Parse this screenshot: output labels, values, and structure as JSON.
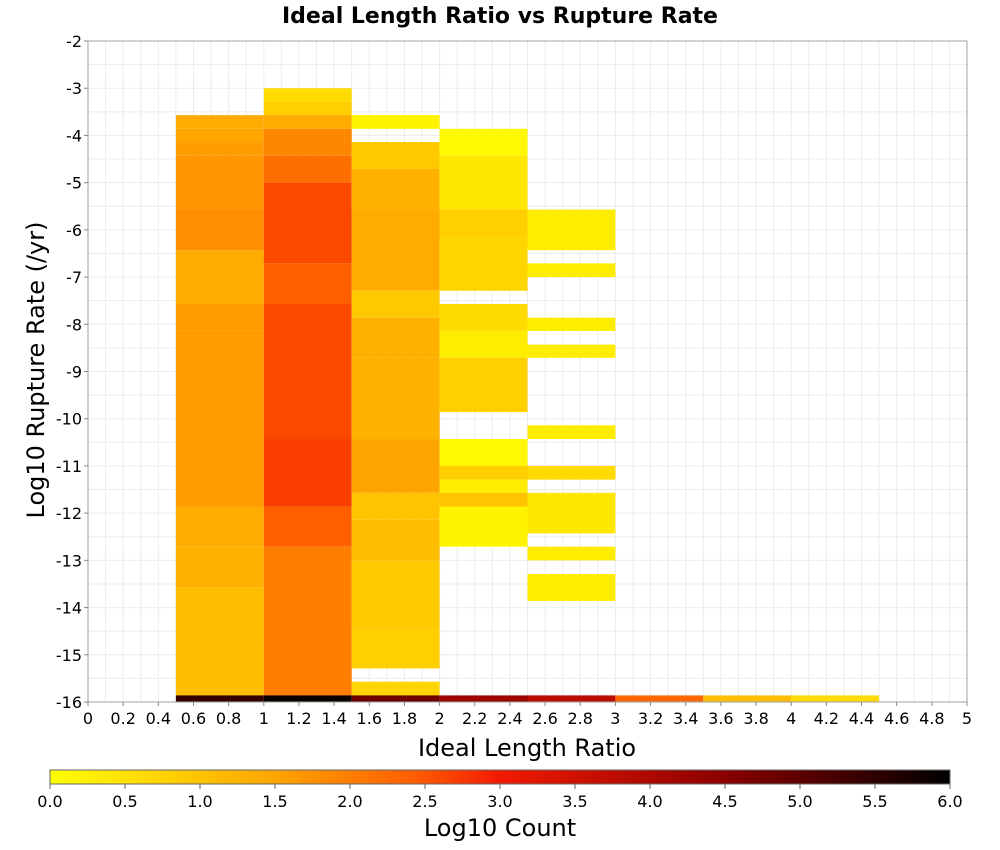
{
  "chart_data": {
    "type": "heatmap",
    "title": "Ideal Length Ratio vs Rupture Rate",
    "xlabel": "Ideal Length Ratio",
    "ylabel": "Log10 Rupture Rate (/yr)",
    "xlim": [
      0,
      5
    ],
    "ylim": [
      -16,
      -2
    ],
    "grid": true,
    "x_ticks": [
      "0",
      "0.2",
      "0.4",
      "0.6",
      "0.8",
      "1",
      "1.2",
      "1.4",
      "1.6",
      "1.8",
      "2",
      "2.2",
      "2.4",
      "2.6",
      "2.8",
      "3",
      "3.2",
      "3.4",
      "3.6",
      "3.8",
      "4",
      "4.2",
      "4.4",
      "4.6",
      "4.8",
      "5"
    ],
    "y_ticks": [
      "-2",
      "-3",
      "-4",
      "-5",
      "-6",
      "-7",
      "-8",
      "-9",
      "-10",
      "-11",
      "-12",
      "-13",
      "-14",
      "-15",
      "-16"
    ],
    "colorbar": {
      "label": "Log10 Count",
      "range": [
        0,
        6
      ],
      "ticks": [
        "0.0",
        "0.5",
        "1.0",
        "1.5",
        "2.0",
        "2.5",
        "3.0",
        "3.5",
        "4.0",
        "4.5",
        "5.0",
        "5.5",
        "6.0"
      ],
      "colors": [
        "#ffff00",
        "#ffa500",
        "#ff5a00",
        "#f21a00",
        "#8a0000",
        "#000000"
      ]
    },
    "bin_height": 0.2857,
    "cells": [
      {
        "x": [
          0.5,
          1.0
        ],
        "segments": [
          {
            "y": [
              -3.86,
              -3.57
            ],
            "v": 1.4
          },
          {
            "y": [
              -4.14,
              -3.86
            ],
            "v": 1.5
          },
          {
            "y": [
              -4.43,
              -4.14
            ],
            "v": 1.6
          },
          {
            "y": [
              -5.57,
              -4.43
            ],
            "v": 1.7
          },
          {
            "y": [
              -6.43,
              -5.57
            ],
            "v": 1.8
          },
          {
            "y": [
              -7.57,
              -6.43
            ],
            "v": 1.4
          },
          {
            "y": [
              -8.14,
              -7.57
            ],
            "v": 1.6
          },
          {
            "y": [
              -10.43,
              -8.14
            ],
            "v": 1.6
          },
          {
            "y": [
              -11.86,
              -10.43
            ],
            "v": 1.6
          },
          {
            "y": [
              -12.71,
              -11.86
            ],
            "v": 1.4
          },
          {
            "y": [
              -13.57,
              -12.71
            ],
            "v": 1.3
          },
          {
            "y": [
              -14.71,
              -13.57
            ],
            "v": 1.1
          },
          {
            "y": [
              -15.86,
              -14.71
            ],
            "v": 1.1
          },
          {
            "y": [
              -16.14,
              -15.86
            ],
            "v": 5.4
          }
        ]
      },
      {
        "x": [
          1.0,
          1.5
        ],
        "segments": [
          {
            "y": [
              -3.29,
              -3.0
            ],
            "v": 0.6
          },
          {
            "y": [
              -3.57,
              -3.29
            ],
            "v": 0.8
          },
          {
            "y": [
              -3.86,
              -3.57
            ],
            "v": 1.4
          },
          {
            "y": [
              -4.43,
              -3.86
            ],
            "v": 1.9
          },
          {
            "y": [
              -5.0,
              -4.43
            ],
            "v": 2.2
          },
          {
            "y": [
              -6.71,
              -5.0
            ],
            "v": 2.6
          },
          {
            "y": [
              -7.57,
              -6.71
            ],
            "v": 2.4
          },
          {
            "y": [
              -10.43,
              -7.57
            ],
            "v": 2.6
          },
          {
            "y": [
              -11.86,
              -10.43
            ],
            "v": 2.7
          },
          {
            "y": [
              -12.71,
              -11.86
            ],
            "v": 2.4
          },
          {
            "y": [
              -15.86,
              -12.71
            ],
            "v": 2.0
          },
          {
            "y": [
              -16.14,
              -15.86
            ],
            "v": 5.9
          }
        ]
      },
      {
        "x": [
          1.5,
          2.0
        ],
        "segments": [
          {
            "y": [
              -3.86,
              -3.57
            ],
            "v": 0.2
          },
          {
            "y": [
              -4.71,
              -4.14
            ],
            "v": 0.9
          },
          {
            "y": [
              -5.57,
              -4.71
            ],
            "v": 1.3
          },
          {
            "y": [
              -7.29,
              -5.57
            ],
            "v": 1.4
          },
          {
            "y": [
              -7.86,
              -7.29
            ],
            "v": 0.9
          },
          {
            "y": [
              -8.71,
              -7.86
            ],
            "v": 1.3
          },
          {
            "y": [
              -10.43,
              -8.71
            ],
            "v": 1.3
          },
          {
            "y": [
              -11.57,
              -10.43
            ],
            "v": 1.5
          },
          {
            "y": [
              -12.14,
              -11.57
            ],
            "v": 1.0
          },
          {
            "y": [
              -13.0,
              -12.14
            ],
            "v": 1.1
          },
          {
            "y": [
              -14.43,
              -13.0
            ],
            "v": 0.9
          },
          {
            "y": [
              -15.29,
              -14.43
            ],
            "v": 0.8
          },
          {
            "y": [
              -15.86,
              -15.57
            ],
            "v": 0.7
          },
          {
            "y": [
              -16.14,
              -15.86
            ],
            "v": 4.8
          }
        ]
      },
      {
        "x": [
          2.0,
          2.5
        ],
        "segments": [
          {
            "y": [
              -4.43,
              -3.86
            ],
            "v": 0.1
          },
          {
            "y": [
              -5.57,
              -4.43
            ],
            "v": 0.4
          },
          {
            "y": [
              -6.14,
              -5.57
            ],
            "v": 0.8
          },
          {
            "y": [
              -7.29,
              -6.14
            ],
            "v": 0.7
          },
          {
            "y": [
              -8.14,
              -7.57
            ],
            "v": 0.6
          },
          {
            "y": [
              -8.71,
              -8.14
            ],
            "v": 0.3
          },
          {
            "y": [
              -9.86,
              -8.71
            ],
            "v": 0.8
          },
          {
            "y": [
              -11.0,
              -10.43
            ],
            "v": 0.1
          },
          {
            "y": [
              -11.29,
              -11.0
            ],
            "v": 0.8
          },
          {
            "y": [
              -11.57,
              -11.29
            ],
            "v": 0.3
          },
          {
            "y": [
              -11.86,
              -11.57
            ],
            "v": 1.0
          },
          {
            "y": [
              -12.71,
              -11.86
            ],
            "v": 0.2
          },
          {
            "y": [
              -16.14,
              -15.86
            ],
            "v": 4.2
          }
        ]
      },
      {
        "x": [
          2.5,
          3.0
        ],
        "segments": [
          {
            "y": [
              -6.43,
              -5.57
            ],
            "v": 0.3
          },
          {
            "y": [
              -7.0,
              -6.71
            ],
            "v": 0.3
          },
          {
            "y": [
              -8.14,
              -7.86
            ],
            "v": 0.3
          },
          {
            "y": [
              -8.71,
              -8.43
            ],
            "v": 0.3
          },
          {
            "y": [
              -10.43,
              -10.14
            ],
            "v": 0.3
          },
          {
            "y": [
              -11.29,
              -11.0
            ],
            "v": 0.6
          },
          {
            "y": [
              -12.43,
              -11.57
            ],
            "v": 0.4
          },
          {
            "y": [
              -13.0,
              -12.71
            ],
            "v": 0.3
          },
          {
            "y": [
              -13.86,
              -13.29
            ],
            "v": 0.3
          },
          {
            "y": [
              -16.14,
              -15.86
            ],
            "v": 3.8
          }
        ]
      },
      {
        "x": [
          3.0,
          3.5
        ],
        "segments": [
          {
            "y": [
              -16.14,
              -15.86
            ],
            "v": 2.3
          }
        ]
      },
      {
        "x": [
          3.5,
          4.0
        ],
        "segments": [
          {
            "y": [
              -16.14,
              -15.86
            ],
            "v": 1.1
          }
        ]
      },
      {
        "x": [
          4.0,
          4.5
        ],
        "segments": [
          {
            "y": [
              -16.14,
              -15.86
            ],
            "v": 0.6
          }
        ]
      }
    ]
  }
}
